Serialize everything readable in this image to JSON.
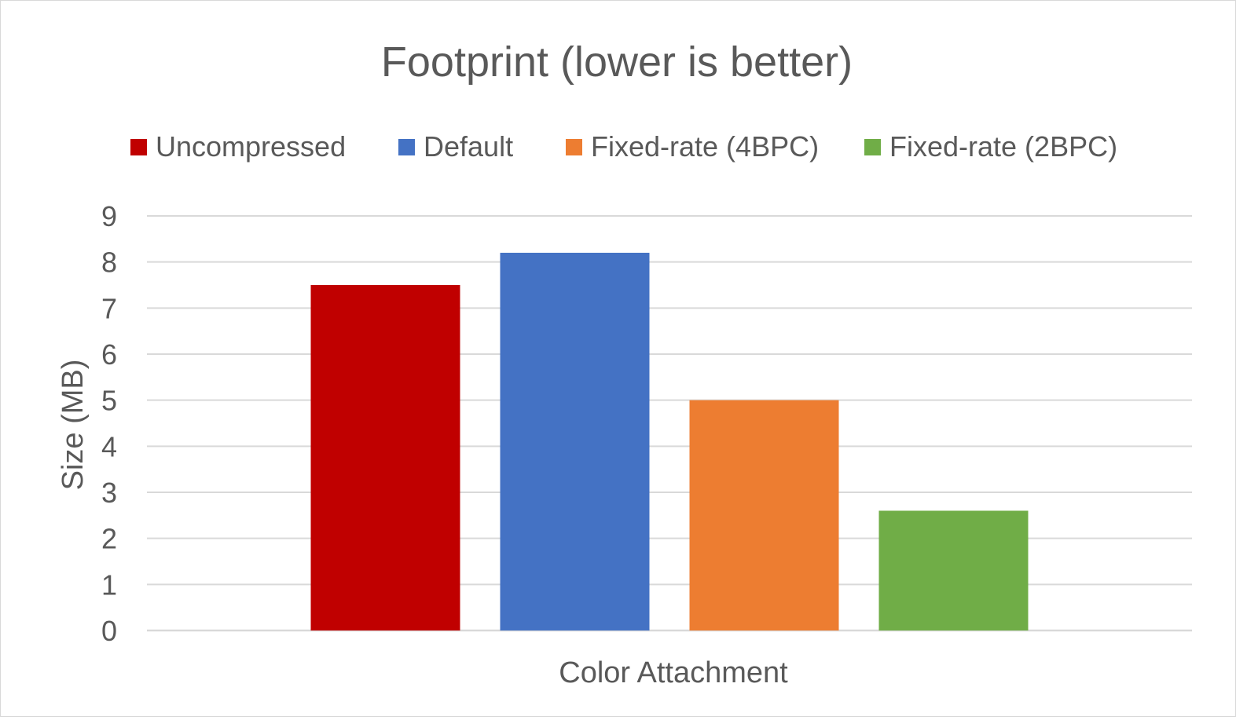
{
  "chart_data": {
    "type": "bar",
    "title": "Footprint (lower is better)",
    "xlabel": "Color Attachment",
    "ylabel": "Size (MB)",
    "categories": [
      "Color Attachment"
    ],
    "series": [
      {
        "name": "Uncompressed",
        "values": [
          7.5
        ],
        "color": "#C00000"
      },
      {
        "name": "Default",
        "values": [
          8.2
        ],
        "color": "#4472C4"
      },
      {
        "name": "Fixed-rate (4BPC)",
        "values": [
          5.0
        ],
        "color": "#ED7D31"
      },
      {
        "name": "Fixed-rate (2BPC)",
        "values": [
          2.6
        ],
        "color": "#70AD47"
      }
    ],
    "ylim": [
      0,
      9
    ],
    "yticks": [
      "0",
      "1",
      "2",
      "3",
      "4",
      "5",
      "6",
      "7",
      "8",
      "9"
    ],
    "grid": true,
    "legend_position": "top"
  }
}
